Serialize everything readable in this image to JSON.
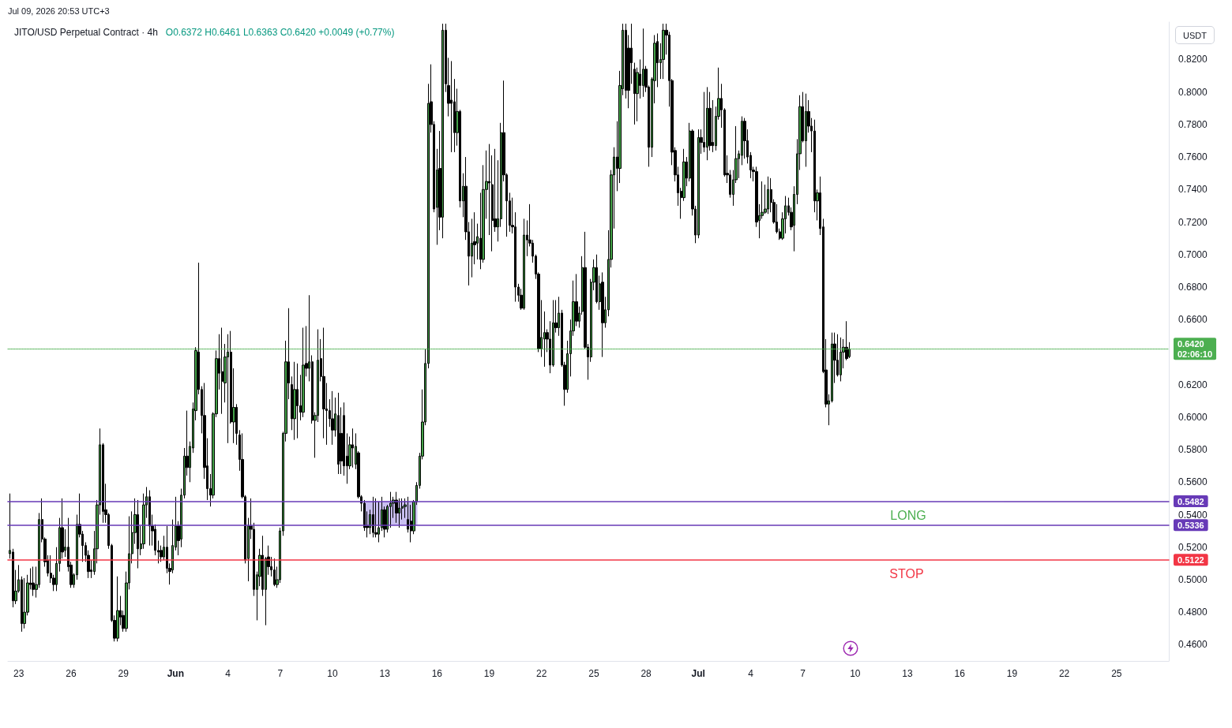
{
  "chart_data": {
    "type": "candlestick",
    "title": "JITO/USD Perpetual Contract · 4h",
    "subtitle": "O0.6372 H0.6461 L0.6363 C0.6420 +0.0049 (+0.77%)",
    "ylabel": "USDT",
    "annotations": [
      "Jul 09, 2026 20:53 UTC+3",
      "LONG",
      "STOP"
    ],
    "color": "#000000",
    "xlim": [
      "2026-05-22T12:00",
      "2026-07-28T03:00"
    ],
    "ylim": [
      0.45,
      0.843
    ],
    "xticks": [
      {
        "value": "2026-05-23T03:00",
        "label": "23"
      },
      {
        "value": "2026-05-26T03:00",
        "label": "26"
      },
      {
        "value": "2026-05-29T03:00",
        "label": "29"
      },
      {
        "value": "2026-06-01T03:00",
        "label": "Jun"
      },
      {
        "value": "2026-06-04T03:00",
        "label": "4"
      },
      {
        "value": "2026-06-07T03:00",
        "label": "7"
      },
      {
        "value": "2026-06-10T03:00",
        "label": "10"
      },
      {
        "value": "2026-06-13T03:00",
        "label": "13"
      },
      {
        "value": "2026-06-16T03:00",
        "label": "16"
      },
      {
        "value": "2026-06-19T03:00",
        "label": "19"
      },
      {
        "value": "2026-06-22T03:00",
        "label": "22"
      },
      {
        "value": "2026-06-25T03:00",
        "label": "25"
      },
      {
        "value": "2026-06-28T03:00",
        "label": "28"
      },
      {
        "value": "2026-07-01T03:00",
        "label": "Jul"
      },
      {
        "value": "2026-07-04T03:00",
        "label": "4"
      },
      {
        "value": "2026-07-07T03:00",
        "label": "7"
      },
      {
        "value": "2026-07-10T03:00",
        "label": "10"
      },
      {
        "value": "2026-07-13T03:00",
        "label": "13"
      },
      {
        "value": "2026-07-16T03:00",
        "label": "16"
      },
      {
        "value": "2026-07-19T03:00",
        "label": "19"
      },
      {
        "value": "2026-07-22T03:00",
        "label": "22"
      },
      {
        "value": "2026-07-25T03:00",
        "label": "25"
      }
    ],
    "yticks": [
      {
        "value": 0.46,
        "label": "0.4600"
      },
      {
        "value": 0.48,
        "label": "0.4800"
      },
      {
        "value": 0.5,
        "label": "0.5000"
      },
      {
        "value": 0.52,
        "label": "0.5200"
      },
      {
        "value": 0.54,
        "label": "0.5400"
      },
      {
        "value": 0.56,
        "label": "0.5600"
      },
      {
        "value": 0.58,
        "label": "0.5800"
      },
      {
        "value": 0.6,
        "label": "0.6000"
      },
      {
        "value": 0.62,
        "label": "0.6200"
      },
      {
        "value": 0.66,
        "label": "0.6600"
      },
      {
        "value": 0.68,
        "label": "0.6800"
      },
      {
        "value": 0.7,
        "label": "0.7000"
      },
      {
        "value": 0.72,
        "label": "0.7200"
      },
      {
        "value": 0.74,
        "label": "0.7400"
      },
      {
        "value": 0.76,
        "label": "0.7600"
      },
      {
        "value": 0.78,
        "label": "0.7800"
      },
      {
        "value": 0.8,
        "label": "0.8000"
      },
      {
        "value": 0.82,
        "label": "0.8200"
      }
    ],
    "ref_lines": [
      {
        "axis": "y",
        "value": 0.5482,
        "label": "0.5482",
        "color": "#673ab7"
      },
      {
        "axis": "y",
        "value": 0.5336,
        "label": "0.5336",
        "color": "#673ab7"
      },
      {
        "axis": "y",
        "value": 0.5122,
        "label": "0.5122",
        "color": "#f23645"
      },
      {
        "axis": "y",
        "value": 0.642,
        "label": "0.6420\n02:06:10",
        "color": "#4caf50",
        "line_style": "dotted"
      }
    ],
    "series": [
      {
        "type": "line",
        "x": [
          "2026-06-11T21:00",
          "2026-06-15T00:00"
        ],
        "values": [
          null,
          null
        ],
        "lower": [
          0.5336,
          0.5336
        ],
        "upper": [
          0.5482,
          0.5482
        ],
        "color": "#c9bff0"
      }
    ],
    "x": [
      "2026-05-22T15:00",
      "2026-05-22T19:00",
      "2026-05-22T23:00",
      "2026-05-23T03:00",
      "2026-05-23T07:00",
      "2026-05-23T11:00",
      "2026-05-23T15:00",
      "2026-05-23T19:00",
      "2026-05-23T23:00",
      "2026-05-24T03:00",
      "2026-05-24T07:00",
      "2026-05-24T11:00",
      "2026-05-24T15:00",
      "2026-05-24T19:00",
      "2026-05-24T23:00",
      "2026-05-25T03:00",
      "2026-05-25T07:00",
      "2026-05-25T11:00",
      "2026-05-25T15:00",
      "2026-05-25T19:00",
      "2026-05-25T23:00",
      "2026-05-26T03:00",
      "2026-05-26T07:00",
      "2026-05-26T11:00",
      "2026-05-26T15:00",
      "2026-05-26T19:00",
      "2026-05-26T23:00",
      "2026-05-27T03:00",
      "2026-05-27T07:00",
      "2026-05-27T11:00",
      "2026-05-27T15:00",
      "2026-05-27T19:00",
      "2026-05-27T23:00",
      "2026-05-28T03:00",
      "2026-05-28T07:00",
      "2026-05-28T11:00",
      "2026-05-28T15:00",
      "2026-05-28T19:00",
      "2026-05-28T23:00",
      "2026-05-29T03:00",
      "2026-05-29T07:00",
      "2026-05-29T11:00",
      "2026-05-29T15:00",
      "2026-05-29T19:00",
      "2026-05-29T23:00",
      "2026-05-30T03:00",
      "2026-05-30T07:00",
      "2026-05-30T11:00",
      "2026-05-30T15:00",
      "2026-05-30T19:00",
      "2026-05-30T23:00",
      "2026-05-31T03:00",
      "2026-05-31T07:00",
      "2026-05-31T11:00",
      "2026-05-31T15:00",
      "2026-05-31T19:00",
      "2026-05-31T23:00",
      "2026-06-01T03:00",
      "2026-06-01T07:00",
      "2026-06-01T11:00",
      "2026-06-01T15:00",
      "2026-06-01T19:00",
      "2026-06-01T23:00",
      "2026-06-02T03:00",
      "2026-06-02T07:00",
      "2026-06-02T11:00",
      "2026-06-02T15:00",
      "2026-06-02T19:00",
      "2026-06-02T23:00",
      "2026-06-03T03:00",
      "2026-06-03T07:00",
      "2026-06-03T11:00",
      "2026-06-03T15:00",
      "2026-06-03T19:00",
      "2026-06-03T23:00",
      "2026-06-04T03:00",
      "2026-06-04T07:00",
      "2026-06-04T11:00",
      "2026-06-04T15:00",
      "2026-06-04T19:00",
      "2026-06-04T23:00",
      "2026-06-05T03:00",
      "2026-06-05T07:00",
      "2026-06-05T11:00",
      "2026-06-05T15:00",
      "2026-06-05T19:00",
      "2026-06-05T23:00",
      "2026-06-06T03:00",
      "2026-06-06T07:00",
      "2026-06-06T11:00",
      "2026-06-06T15:00",
      "2026-06-06T19:00",
      "2026-06-06T23:00",
      "2026-06-07T03:00",
      "2026-06-07T07:00",
      "2026-06-07T11:00",
      "2026-06-07T15:00",
      "2026-06-07T19:00",
      "2026-06-07T23:00",
      "2026-06-08T03:00",
      "2026-06-08T07:00",
      "2026-06-08T11:00",
      "2026-06-08T15:00",
      "2026-06-08T19:00",
      "2026-06-08T23:00",
      "2026-06-09T03:00",
      "2026-06-09T07:00",
      "2026-06-09T11:00",
      "2026-06-09T15:00",
      "2026-06-09T19:00",
      "2026-06-09T23:00",
      "2026-06-10T03:00",
      "2026-06-10T07:00",
      "2026-06-10T11:00",
      "2026-06-10T15:00",
      "2026-06-10T19:00",
      "2026-06-10T23:00",
      "2026-06-11T03:00",
      "2026-06-11T07:00",
      "2026-06-11T11:00",
      "2026-06-11T15:00",
      "2026-06-11T19:00",
      "2026-06-11T23:00",
      "2026-06-12T03:00",
      "2026-06-12T07:00",
      "2026-06-12T11:00",
      "2026-06-12T15:00",
      "2026-06-12T19:00",
      "2026-06-12T23:00",
      "2026-06-13T03:00",
      "2026-06-13T07:00",
      "2026-06-13T11:00",
      "2026-06-13T15:00",
      "2026-06-13T19:00",
      "2026-06-13T23:00",
      "2026-06-14T03:00",
      "2026-06-14T07:00",
      "2026-06-14T11:00",
      "2026-06-14T15:00",
      "2026-06-14T19:00",
      "2026-06-14T23:00",
      "2026-06-15T03:00",
      "2026-06-15T07:00",
      "2026-06-15T11:00",
      "2026-06-15T15:00",
      "2026-06-15T19:00",
      "2026-06-15T23:00",
      "2026-06-16T03:00",
      "2026-06-16T07:00",
      "2026-06-16T11:00",
      "2026-06-16T15:00",
      "2026-06-16T19:00",
      "2026-06-16T23:00",
      "2026-06-17T03:00",
      "2026-06-17T07:00",
      "2026-06-17T11:00",
      "2026-06-17T15:00",
      "2026-06-17T19:00",
      "2026-06-17T23:00",
      "2026-06-18T03:00",
      "2026-06-18T07:00",
      "2026-06-18T11:00",
      "2026-06-18T15:00",
      "2026-06-18T19:00",
      "2026-06-18T23:00",
      "2026-06-19T03:00",
      "2026-06-19T07:00",
      "2026-06-19T11:00",
      "2026-06-19T15:00",
      "2026-06-19T19:00",
      "2026-06-19T23:00",
      "2026-06-20T03:00",
      "2026-06-20T07:00",
      "2026-06-20T11:00",
      "2026-06-20T15:00",
      "2026-06-20T19:00",
      "2026-06-20T23:00",
      "2026-06-21T03:00",
      "2026-06-21T07:00",
      "2026-06-21T11:00",
      "2026-06-21T15:00",
      "2026-06-21T19:00",
      "2026-06-21T23:00",
      "2026-06-22T03:00",
      "2026-06-22T07:00",
      "2026-06-22T11:00",
      "2026-06-22T15:00",
      "2026-06-22T19:00",
      "2026-06-22T23:00",
      "2026-06-23T03:00",
      "2026-06-23T07:00",
      "2026-06-23T11:00",
      "2026-06-23T15:00",
      "2026-06-23T19:00",
      "2026-06-23T23:00",
      "2026-06-24T03:00",
      "2026-06-24T07:00",
      "2026-06-24T11:00",
      "2026-06-24T15:00",
      "2026-06-24T19:00",
      "2026-06-24T23:00",
      "2026-06-25T03:00",
      "2026-06-25T07:00",
      "2026-06-25T11:00",
      "2026-06-25T15:00",
      "2026-06-25T19:00",
      "2026-06-25T23:00",
      "2026-06-26T03:00",
      "2026-06-26T07:00",
      "2026-06-26T11:00",
      "2026-06-26T15:00",
      "2026-06-26T19:00",
      "2026-06-26T23:00",
      "2026-06-27T03:00",
      "2026-06-27T07:00",
      "2026-06-27T11:00",
      "2026-06-27T15:00",
      "2026-06-27T19:00",
      "2026-06-27T23:00",
      "2026-06-28T03:00",
      "2026-06-28T07:00",
      "2026-06-28T11:00",
      "2026-06-28T15:00",
      "2026-06-28T19:00",
      "2026-06-28T23:00",
      "2026-06-29T03:00",
      "2026-06-29T07:00",
      "2026-06-29T11:00",
      "2026-06-29T15:00",
      "2026-06-29T19:00",
      "2026-06-29T23:00",
      "2026-06-30T03:00",
      "2026-06-30T07:00",
      "2026-06-30T11:00",
      "2026-06-30T15:00",
      "2026-06-30T19:00",
      "2026-06-30T23:00",
      "2026-07-01T03:00",
      "2026-07-01T07:00",
      "2026-07-01T11:00",
      "2026-07-01T15:00",
      "2026-07-01T19:00",
      "2026-07-01T23:00",
      "2026-07-02T03:00",
      "2026-07-02T07:00",
      "2026-07-02T11:00",
      "2026-07-02T15:00",
      "2026-07-02T19:00",
      "2026-07-02T23:00",
      "2026-07-03T03:00",
      "2026-07-03T07:00",
      "2026-07-03T11:00",
      "2026-07-03T15:00",
      "2026-07-03T19:00",
      "2026-07-03T23:00",
      "2026-07-04T03:00",
      "2026-07-04T07:00",
      "2026-07-04T11:00",
      "2026-07-04T15:00",
      "2026-07-04T19:00",
      "2026-07-04T23:00",
      "2026-07-05T03:00",
      "2026-07-05T07:00",
      "2026-07-05T11:00",
      "2026-07-05T15:00",
      "2026-07-05T19:00",
      "2026-07-05T23:00",
      "2026-07-06T03:00",
      "2026-07-06T07:00",
      "2026-07-06T11:00",
      "2026-07-06T15:00",
      "2026-07-06T19:00",
      "2026-07-06T23:00",
      "2026-07-07T03:00",
      "2026-07-07T07:00",
      "2026-07-07T11:00",
      "2026-07-07T15:00",
      "2026-07-07T19:00",
      "2026-07-07T23:00",
      "2026-07-08T03:00",
      "2026-07-08T07:00",
      "2026-07-08T11:00",
      "2026-07-08T15:00",
      "2026-07-08T19:00",
      "2026-07-08T23:00",
      "2026-07-09T03:00",
      "2026-07-09T07:00",
      "2026-07-09T11:00",
      "2026-07-09T15:00",
      "2026-07-09T19:00"
    ],
    "ohlc": [
      [
        0.516,
        0.553,
        0.513,
        0.518
      ],
      [
        0.517,
        0.519,
        0.483,
        0.487
      ],
      [
        0.487,
        0.506,
        0.485,
        0.493
      ],
      [
        0.493,
        0.509,
        0.492,
        0.5
      ],
      [
        0.5,
        0.502,
        0.468,
        0.473
      ],
      [
        0.473,
        0.501,
        0.47,
        0.48
      ],
      [
        0.48,
        0.503,
        0.478,
        0.498
      ],
      [
        0.498,
        0.507,
        0.494,
        0.497
      ],
      [
        0.498,
        0.508,
        0.49,
        0.494
      ],
      [
        0.494,
        0.508,
        0.489,
        0.497
      ],
      [
        0.497,
        0.541,
        0.495,
        0.537
      ],
      [
        0.537,
        0.55,
        0.523,
        0.525
      ],
      [
        0.525,
        0.526,
        0.508,
        0.511
      ],
      [
        0.512,
        0.515,
        0.502,
        0.504
      ],
      [
        0.504,
        0.515,
        0.498,
        0.501
      ],
      [
        0.501,
        0.503,
        0.493,
        0.497
      ],
      [
        0.497,
        0.52,
        0.493,
        0.51
      ],
      [
        0.51,
        0.538,
        0.505,
        0.532
      ],
      [
        0.532,
        0.55,
        0.513,
        0.517
      ],
      [
        0.518,
        0.531,
        0.514,
        0.52
      ],
      [
        0.52,
        0.538,
        0.505,
        0.508
      ],
      [
        0.509,
        0.511,
        0.495,
        0.497
      ],
      [
        0.497,
        0.504,
        0.495,
        0.503
      ],
      [
        0.503,
        0.54,
        0.5,
        0.534
      ],
      [
        0.534,
        0.553,
        0.526,
        0.528
      ],
      [
        0.528,
        0.53,
        0.511,
        0.521
      ],
      [
        0.521,
        0.523,
        0.511,
        0.515
      ],
      [
        0.515,
        0.518,
        0.501,
        0.505
      ],
      [
        0.506,
        0.512,
        0.501,
        0.505
      ],
      [
        0.505,
        0.53,
        0.503,
        0.519
      ],
      [
        0.519,
        0.549,
        0.51,
        0.546
      ],
      [
        0.546,
        0.593,
        0.54,
        0.583
      ],
      [
        0.583,
        0.584,
        0.535,
        0.542
      ],
      [
        0.543,
        0.559,
        0.535,
        0.54
      ],
      [
        0.54,
        0.541,
        0.519,
        0.521
      ],
      [
        0.521,
        0.522,
        0.474,
        0.475
      ],
      [
        0.475,
        0.478,
        0.462,
        0.464
      ],
      [
        0.464,
        0.502,
        0.462,
        0.481
      ],
      [
        0.481,
        0.49,
        0.472,
        0.477
      ],
      [
        0.478,
        0.481,
        0.468,
        0.47
      ],
      [
        0.47,
        0.505,
        0.468,
        0.498
      ],
      [
        0.498,
        0.539,
        0.494,
        0.516
      ],
      [
        0.516,
        0.542,
        0.51,
        0.529
      ],
      [
        0.529,
        0.55,
        0.522,
        0.54
      ],
      [
        0.54,
        0.549,
        0.507,
        0.519
      ],
      [
        0.519,
        0.533,
        0.515,
        0.522
      ],
      [
        0.522,
        0.553,
        0.519,
        0.546
      ],
      [
        0.546,
        0.557,
        0.538,
        0.551
      ],
      [
        0.551,
        0.555,
        0.521,
        0.533
      ],
      [
        0.533,
        0.54,
        0.521,
        0.53
      ],
      [
        0.531,
        0.534,
        0.515,
        0.518
      ],
      [
        0.518,
        0.524,
        0.51,
        0.517
      ],
      [
        0.518,
        0.521,
        0.511,
        0.514
      ],
      [
        0.514,
        0.527,
        0.512,
        0.52
      ],
      [
        0.52,
        0.533,
        0.504,
        0.507
      ],
      [
        0.507,
        0.51,
        0.497,
        0.505
      ],
      [
        0.506,
        0.537,
        0.504,
        0.521
      ],
      [
        0.52,
        0.551,
        0.518,
        0.533
      ],
      [
        0.533,
        0.536,
        0.515,
        0.524
      ],
      [
        0.525,
        0.556,
        0.52,
        0.552
      ],
      [
        0.552,
        0.581,
        0.55,
        0.576
      ],
      [
        0.576,
        0.604,
        0.564,
        0.569
      ],
      [
        0.569,
        0.585,
        0.56,
        0.582
      ],
      [
        0.581,
        0.609,
        0.578,
        0.605
      ],
      [
        0.604,
        0.643,
        0.598,
        0.641
      ],
      [
        0.64,
        0.695,
        0.614,
        0.617
      ],
      [
        0.617,
        0.619,
        0.59,
        0.601
      ],
      [
        0.601,
        0.621,
        0.562,
        0.569
      ],
      [
        0.57,
        0.587,
        0.549,
        0.556
      ],
      [
        0.556,
        0.565,
        0.545,
        0.552
      ],
      [
        0.552,
        0.603,
        0.55,
        0.602
      ],
      [
        0.602,
        0.641,
        0.6,
        0.636
      ],
      [
        0.636,
        0.651,
        0.617,
        0.627
      ],
      [
        0.628,
        0.655,
        0.602,
        0.622
      ],
      [
        0.621,
        0.645,
        0.609,
        0.637
      ],
      [
        0.637,
        0.651,
        0.584,
        0.64
      ],
      [
        0.64,
        0.653,
        0.596,
        0.597
      ],
      [
        0.597,
        0.63,
        0.584,
        0.606
      ],
      [
        0.606,
        0.608,
        0.583,
        0.59
      ],
      [
        0.589,
        0.592,
        0.567,
        0.574
      ],
      [
        0.574,
        0.59,
        0.55,
        0.551
      ],
      [
        0.551,
        0.552,
        0.51,
        0.512
      ],
      [
        0.513,
        0.538,
        0.499,
        0.533
      ],
      [
        0.533,
        0.55,
        0.525,
        0.531
      ],
      [
        0.531,
        0.535,
        0.49,
        0.494
      ],
      [
        0.494,
        0.505,
        0.475,
        0.503
      ],
      [
        0.502,
        0.519,
        0.496,
        0.515
      ],
      [
        0.515,
        0.527,
        0.49,
        0.494
      ],
      [
        0.494,
        0.514,
        0.472,
        0.513
      ],
      [
        0.514,
        0.521,
        0.503,
        0.508
      ],
      [
        0.508,
        0.514,
        0.502,
        0.506
      ],
      [
        0.506,
        0.513,
        0.496,
        0.497
      ],
      [
        0.497,
        0.508,
        0.495,
        0.5
      ],
      [
        0.5,
        0.532,
        0.498,
        0.53
      ],
      [
        0.53,
        0.591,
        0.527,
        0.59
      ],
      [
        0.59,
        0.647,
        0.585,
        0.634
      ],
      [
        0.634,
        0.667,
        0.611,
        0.621
      ],
      [
        0.62,
        0.625,
        0.592,
        0.599
      ],
      [
        0.599,
        0.634,
        0.586,
        0.617
      ],
      [
        0.617,
        0.633,
        0.587,
        0.607
      ],
      [
        0.607,
        0.626,
        0.598,
        0.603
      ],
      [
        0.603,
        0.655,
        0.6,
        0.632
      ],
      [
        0.633,
        0.656,
        0.625,
        0.63
      ],
      [
        0.63,
        0.675,
        0.622,
        0.634
      ],
      [
        0.634,
        0.638,
        0.596,
        0.598
      ],
      [
        0.598,
        0.603,
        0.575,
        0.601
      ],
      [
        0.601,
        0.654,
        0.597,
        0.635
      ],
      [
        0.636,
        0.648,
        0.622,
        0.625
      ],
      [
        0.625,
        0.655,
        0.587,
        0.605
      ],
      [
        0.605,
        0.621,
        0.583,
        0.604
      ],
      [
        0.604,
        0.611,
        0.594,
        0.599
      ],
      [
        0.599,
        0.616,
        0.583,
        0.592
      ],
      [
        0.592,
        0.612,
        0.588,
        0.602
      ],
      [
        0.601,
        0.615,
        0.565,
        0.571
      ],
      [
        0.59,
        0.606,
        0.565,
        0.573
      ],
      [
        0.601,
        0.609,
        0.564,
        0.57
      ],
      [
        0.576,
        0.59,
        0.559,
        0.57
      ],
      [
        0.57,
        0.588,
        0.568,
        0.583
      ],
      [
        0.583,
        0.593,
        0.569,
        0.581
      ],
      [
        0.571,
        0.59,
        0.568,
        0.582
      ],
      [
        0.578,
        0.579,
        0.55,
        0.551
      ],
      [
        0.551,
        0.552,
        0.542,
        0.547
      ],
      [
        0.547,
        0.549,
        0.53,
        0.532
      ],
      [
        0.533,
        0.542,
        0.526,
        0.532
      ],
      [
        0.532,
        0.543,
        0.528,
        0.54
      ],
      [
        0.54,
        0.551,
        0.526,
        0.529
      ],
      [
        0.529,
        0.55,
        0.526,
        0.528
      ],
      [
        0.528,
        0.548,
        0.523,
        0.532
      ],
      [
        0.532,
        0.551,
        0.53,
        0.543
      ],
      [
        0.543,
        0.545,
        0.526,
        0.531
      ],
      [
        0.531,
        0.546,
        0.529,
        0.545
      ],
      [
        0.545,
        0.554,
        0.532,
        0.547
      ],
      [
        0.547,
        0.551,
        0.538,
        0.549
      ],
      [
        0.549,
        0.554,
        0.535,
        0.541
      ],
      [
        0.541,
        0.55,
        0.532,
        0.544
      ],
      [
        0.544,
        0.55,
        0.537,
        0.545
      ],
      [
        0.545,
        0.55,
        0.538,
        0.546
      ],
      [
        0.537,
        0.551,
        0.529,
        0.531
      ],
      [
        0.536,
        0.546,
        0.523,
        0.53
      ],
      [
        0.53,
        0.549,
        0.528,
        0.548
      ],
      [
        0.548,
        0.56,
        0.546,
        0.558
      ],
      [
        0.558,
        0.578,
        0.556,
        0.576
      ],
      [
        0.576,
        0.617,
        0.574,
        0.597
      ],
      [
        0.597,
        0.642,
        0.595,
        0.633
      ],
      [
        0.633,
        0.805,
        0.63,
        0.793
      ],
      [
        0.794,
        0.817,
        0.775,
        0.78
      ],
      [
        0.78,
        0.782,
        0.726,
        0.728
      ],
      [
        0.729,
        0.765,
        0.706,
        0.752
      ],
      [
        0.753,
        0.776,
        0.715,
        0.723
      ],
      [
        0.723,
        0.842,
        0.71,
        0.838
      ],
      [
        0.838,
        0.842,
        0.8,
        0.805
      ],
      [
        0.804,
        0.821,
        0.785,
        0.793
      ],
      [
        0.795,
        0.819,
        0.763,
        0.793
      ],
      [
        0.794,
        0.808,
        0.763,
        0.775
      ],
      [
        0.775,
        0.802,
        0.767,
        0.788
      ],
      [
        0.788,
        0.789,
        0.729,
        0.733
      ],
      [
        0.733,
        0.75,
        0.723,
        0.742
      ],
      [
        0.742,
        0.76,
        0.709,
        0.714
      ],
      [
        0.714,
        0.72,
        0.681,
        0.699
      ],
      [
        0.699,
        0.722,
        0.686,
        0.707
      ],
      [
        0.708,
        0.726,
        0.694,
        0.706
      ],
      [
        0.707,
        0.719,
        0.697,
        0.711
      ],
      [
        0.71,
        0.738,
        0.691,
        0.697
      ],
      [
        0.697,
        0.755,
        0.695,
        0.74
      ],
      [
        0.74,
        0.764,
        0.722,
        0.745
      ],
      [
        0.745,
        0.768,
        0.712,
        0.744
      ],
      [
        0.743,
        0.761,
        0.702,
        0.721
      ],
      [
        0.722,
        0.765,
        0.714,
        0.717
      ],
      [
        0.717,
        0.758,
        0.708,
        0.722
      ],
      [
        0.722,
        0.781,
        0.717,
        0.775
      ],
      [
        0.775,
        0.807,
        0.745,
        0.749
      ],
      [
        0.749,
        0.75,
        0.711,
        0.733
      ],
      [
        0.733,
        0.738,
        0.714,
        0.718
      ],
      [
        0.718,
        0.735,
        0.713,
        0.717
      ],
      [
        0.717,
        0.726,
        0.671,
        0.68
      ],
      [
        0.68,
        0.682,
        0.671,
        0.675
      ],
      [
        0.675,
        0.679,
        0.666,
        0.667
      ],
      [
        0.667,
        0.722,
        0.666,
        0.712
      ],
      [
        0.712,
        0.721,
        0.699,
        0.709
      ],
      [
        0.709,
        0.731,
        0.705,
        0.707
      ],
      [
        0.707,
        0.709,
        0.695,
        0.699
      ],
      [
        0.699,
        0.7,
        0.685,
        0.688
      ],
      [
        0.688,
        0.689,
        0.64,
        0.642
      ],
      [
        0.642,
        0.672,
        0.637,
        0.649
      ],
      [
        0.648,
        0.665,
        0.631,
        0.652
      ],
      [
        0.652,
        0.654,
        0.64,
        0.648
      ],
      [
        0.648,
        0.659,
        0.627,
        0.632
      ],
      [
        0.632,
        0.672,
        0.631,
        0.658
      ],
      [
        0.658,
        0.672,
        0.652,
        0.655
      ],
      [
        0.655,
        0.674,
        0.65,
        0.664
      ],
      [
        0.664,
        0.666,
        0.631,
        0.632
      ],
      [
        0.632,
        0.634,
        0.607,
        0.617
      ],
      [
        0.617,
        0.647,
        0.615,
        0.639
      ],
      [
        0.639,
        0.66,
        0.625,
        0.653
      ],
      [
        0.653,
        0.684,
        0.65,
        0.671
      ],
      [
        0.671,
        0.688,
        0.656,
        0.659
      ],
      [
        0.659,
        0.668,
        0.655,
        0.664
      ],
      [
        0.665,
        0.699,
        0.663,
        0.692
      ],
      [
        0.692,
        0.714,
        0.642,
        0.643
      ],
      [
        0.643,
        0.645,
        0.623,
        0.637
      ],
      [
        0.637,
        0.685,
        0.634,
        0.683
      ],
      [
        0.683,
        0.697,
        0.678,
        0.692
      ],
      [
        0.692,
        0.7,
        0.67,
        0.671
      ],
      [
        0.671,
        0.687,
        0.666,
        0.682
      ],
      [
        0.683,
        0.689,
        0.637,
        0.658
      ],
      [
        0.658,
        0.674,
        0.655,
        0.666
      ],
      [
        0.666,
        0.715,
        0.662,
        0.697
      ],
      [
        0.697,
        0.752,
        0.692,
        0.749
      ],
      [
        0.749,
        0.766,
        0.716,
        0.76
      ],
      [
        0.76,
        0.782,
        0.739,
        0.753
      ],
      [
        0.753,
        0.813,
        0.744,
        0.804
      ],
      [
        0.802,
        0.842,
        0.798,
        0.838
      ],
      [
        0.838,
        0.842,
        0.796,
        0.801
      ],
      [
        0.827,
        0.835,
        0.79,
        0.801
      ],
      [
        0.827,
        0.842,
        0.805,
        0.818
      ],
      [
        0.814,
        0.818,
        0.78,
        0.799
      ],
      [
        0.799,
        0.815,
        0.782,
        0.812
      ],
      [
        0.811,
        0.82,
        0.796,
        0.804
      ],
      [
        0.804,
        0.839,
        0.797,
        0.814
      ],
      [
        0.814,
        0.816,
        0.8,
        0.803
      ],
      [
        0.803,
        0.804,
        0.754,
        0.766
      ],
      [
        0.766,
        0.809,
        0.76,
        0.808
      ],
      [
        0.807,
        0.835,
        0.793,
        0.83
      ],
      [
        0.831,
        0.836,
        0.803,
        0.818
      ],
      [
        0.818,
        0.83,
        0.808,
        0.82
      ],
      [
        0.82,
        0.842,
        0.808,
        0.838
      ],
      [
        0.838,
        0.842,
        0.823,
        0.835
      ],
      [
        0.835,
        0.837,
        0.791,
        0.807
      ],
      [
        0.807,
        0.808,
        0.755,
        0.763
      ],
      [
        0.764,
        0.766,
        0.745,
        0.749
      ],
      [
        0.749,
        0.754,
        0.73,
        0.738
      ],
      [
        0.739,
        0.741,
        0.722,
        0.735
      ],
      [
        0.735,
        0.765,
        0.733,
        0.757
      ],
      [
        0.757,
        0.76,
        0.742,
        0.747
      ],
      [
        0.747,
        0.781,
        0.745,
        0.776
      ],
      [
        0.776,
        0.777,
        0.724,
        0.728
      ],
      [
        0.728,
        0.73,
        0.707,
        0.712
      ],
      [
        0.712,
        0.777,
        0.71,
        0.772
      ],
      [
        0.772,
        0.777,
        0.762,
        0.769
      ],
      [
        0.769,
        0.8,
        0.763,
        0.766
      ],
      [
        0.766,
        0.803,
        0.758,
        0.79
      ],
      [
        0.79,
        0.8,
        0.764,
        0.767
      ],
      [
        0.769,
        0.795,
        0.763,
        0.767
      ],
      [
        0.767,
        0.791,
        0.764,
        0.785
      ],
      [
        0.785,
        0.815,
        0.783,
        0.796
      ],
      [
        0.796,
        0.805,
        0.778,
        0.789
      ],
      [
        0.789,
        0.79,
        0.748,
        0.749
      ],
      [
        0.75,
        0.761,
        0.744,
        0.749
      ],
      [
        0.749,
        0.752,
        0.735,
        0.737
      ],
      [
        0.737,
        0.752,
        0.73,
        0.746
      ],
      [
        0.746,
        0.779,
        0.744,
        0.759
      ],
      [
        0.759,
        0.764,
        0.747,
        0.762
      ],
      [
        0.761,
        0.785,
        0.755,
        0.782
      ],
      [
        0.782,
        0.784,
        0.759,
        0.77
      ],
      [
        0.77,
        0.777,
        0.756,
        0.76
      ],
      [
        0.761,
        0.763,
        0.747,
        0.752
      ],
      [
        0.752,
        0.754,
        0.745,
        0.751
      ],
      [
        0.751,
        0.754,
        0.717,
        0.72
      ],
      [
        0.721,
        0.731,
        0.71,
        0.724
      ],
      [
        0.724,
        0.745,
        0.722,
        0.726
      ],
      [
        0.726,
        0.743,
        0.725,
        0.728
      ],
      [
        0.728,
        0.748,
        0.725,
        0.74
      ],
      [
        0.74,
        0.747,
        0.726,
        0.732
      ],
      [
        0.732,
        0.734,
        0.719,
        0.72
      ],
      [
        0.72,
        0.731,
        0.713,
        0.714
      ],
      [
        0.714,
        0.716,
        0.709,
        0.71
      ],
      [
        0.71,
        0.726,
        0.709,
        0.722
      ],
      [
        0.722,
        0.736,
        0.713,
        0.73
      ],
      [
        0.73,
        0.735,
        0.724,
        0.726
      ],
      [
        0.726,
        0.729,
        0.715,
        0.717
      ],
      [
        0.718,
        0.742,
        0.702,
        0.737
      ],
      [
        0.737,
        0.771,
        0.731,
        0.762
      ],
      [
        0.762,
        0.798,
        0.752,
        0.791
      ],
      [
        0.791,
        0.8,
        0.769,
        0.77
      ],
      [
        0.77,
        0.799,
        0.754,
        0.788
      ],
      [
        0.788,
        0.795,
        0.775,
        0.779
      ],
      [
        0.779,
        0.784,
        0.763,
        0.776
      ],
      [
        0.776,
        0.783,
        0.726,
        0.733
      ],
      [
        0.733,
        0.74,
        0.721,
        0.738
      ],
      [
        0.738,
        0.748,
        0.712,
        0.716
      ],
      [
        0.717,
        0.722,
        0.627,
        0.628
      ],
      [
        0.629,
        0.648,
        0.606,
        0.608
      ],
      [
        0.608,
        0.614,
        0.595,
        0.61
      ],
      [
        0.61,
        0.652,
        0.609,
        0.645
      ],
      [
        0.645,
        0.652,
        0.621,
        0.635
      ],
      [
        0.635,
        0.651,
        0.625,
        0.626
      ],
      [
        0.626,
        0.649,
        0.622,
        0.64
      ],
      [
        0.64,
        0.648,
        0.63,
        0.643
      ],
      [
        0.643,
        0.659,
        0.635,
        0.636
      ],
      [
        0.6372,
        0.6461,
        0.6363,
        0.642
      ]
    ],
    "colors": [
      "#43a047",
      "#000000",
      "#43a047",
      "#43a047",
      "#000000",
      "#43a047",
      "#43a047",
      "#000000",
      "#000000",
      "#43a047",
      "#43a047",
      "#000000",
      "#000000",
      "#000000",
      "#000000",
      "#000000",
      "#43a047",
      "#43a047",
      "#000000",
      "#43a047",
      "#000000",
      "#000000",
      "#43a047",
      "#43a047",
      "#000000",
      "#000000",
      "#000000",
      "#000000",
      "#000000",
      "#43a047",
      "#43a047",
      "#43a047",
      "#000000",
      "#000000",
      "#000000",
      "#000000",
      "#000000",
      "#43a047",
      "#000000",
      "#000000",
      "#43a047",
      "#43a047",
      "#43a047",
      "#43a047",
      "#000000",
      "#43a047",
      "#43a047",
      "#43a047",
      "#000000",
      "#000000",
      "#000000",
      "#000000",
      "#000000",
      "#43a047",
      "#000000",
      "#000000",
      "#43a047",
      "#43a047",
      "#000000",
      "#43a047",
      "#43a047",
      "#000000",
      "#43a047",
      "#43a047",
      "#43a047",
      "#000000",
      "#000000",
      "#000000",
      "#000000",
      "#000000",
      "#43a047",
      "#43a047",
      "#000000",
      "#000000",
      "#43a047",
      "#43a047",
      "#000000",
      "#43a047",
      "#000000",
      "#000000",
      "#000000",
      "#000000",
      "#43a047",
      "#000000",
      "#000000",
      "#43a047",
      "#43a047",
      "#000000",
      "#43a047",
      "#000000",
      "#000000",
      "#000000",
      "#43a047",
      "#43a047",
      "#43a047",
      "#43a047",
      "#000000",
      "#000000",
      "#43a047",
      "#000000",
      "#000000",
      "#43a047",
      "#000000",
      "#43a047",
      "#000000",
      "#43a047",
      "#43a047",
      "#000000",
      "#000000",
      "#000000",
      "#000000",
      "#000000",
      "#43a047",
      "#000000",
      "#000000",
      "#000000",
      "#000000",
      "#43a047",
      "#000000",
      "#43a047",
      "#000000",
      "#000000",
      "#000000",
      "#000000",
      "#43a047",
      "#000000",
      "#000000",
      "#43a047",
      "#43a047",
      "#000000",
      "#43a047",
      "#43a047",
      "#43a047",
      "#000000",
      "#43a047",
      "#43a047",
      "#43a047",
      "#000000",
      "#000000",
      "#43a047",
      "#43a047",
      "#43a047",
      "#43a047",
      "#43a047",
      "#43a047",
      "#000000",
      "#000000",
      "#43a047",
      "#000000",
      "#43a047",
      "#000000",
      "#000000",
      "#000000",
      "#000000",
      "#43a047",
      "#000000",
      "#43a047",
      "#000000",
      "#000000",
      "#43a047",
      "#000000",
      "#43a047",
      "#000000",
      "#43a047",
      "#43a047",
      "#000000",
      "#000000",
      "#000000",
      "#43a047",
      "#43a047",
      "#000000",
      "#000000",
      "#000000",
      "#000000",
      "#000000",
      "#000000",
      "#000000",
      "#43a047",
      "#000000",
      "#000000",
      "#000000",
      "#000000",
      "#000000",
      "#43a047",
      "#43a047",
      "#000000",
      "#000000",
      "#43a047",
      "#000000",
      "#43a047",
      "#000000",
      "#000000",
      "#43a047",
      "#43a047",
      "#43a047",
      "#000000",
      "#43a047",
      "#43a047",
      "#000000",
      "#000000",
      "#43a047",
      "#43a047",
      "#000000",
      "#43a047",
      "#000000",
      "#43a047",
      "#43a047",
      "#43a047",
      "#43a047",
      "#000000",
      "#43a047",
      "#43a047",
      "#000000",
      "#000000",
      "#000000",
      "#000000",
      "#43a047",
      "#000000",
      "#43a047",
      "#000000",
      "#000000",
      "#43a047",
      "#43a047",
      "#000000",
      "#43a047",
      "#43a047",
      "#000000",
      "#000000",
      "#000000",
      "#000000",
      "#000000",
      "#000000",
      "#43a047",
      "#000000",
      "#43a047",
      "#000000",
      "#000000",
      "#43a047",
      "#000000",
      "#000000",
      "#43a047",
      "#000000",
      "#000000",
      "#43a047",
      "#43a047",
      "#000000",
      "#000000",
      "#000000",
      "#000000",
      "#43a047",
      "#43a047",
      "#43a047",
      "#43a047",
      "#000000",
      "#000000",
      "#000000",
      "#000000",
      "#000000",
      "#43a047",
      "#43a047",
      "#43a047",
      "#43a047",
      "#000000",
      "#000000",
      "#000000",
      "#000000",
      "#43a047",
      "#43a047",
      "#000000",
      "#000000",
      "#43a047",
      "#43a047",
      "#43a047",
      "#000000",
      "#43a047",
      "#000000",
      "#000000",
      "#000000",
      "#43a047",
      "#000000",
      "#000000",
      "#000000",
      "#43a047",
      "#43a047",
      "#000000",
      "#000000",
      "#43a047",
      "#43a047",
      "#000000",
      "#43a047"
    ]
  }
}
